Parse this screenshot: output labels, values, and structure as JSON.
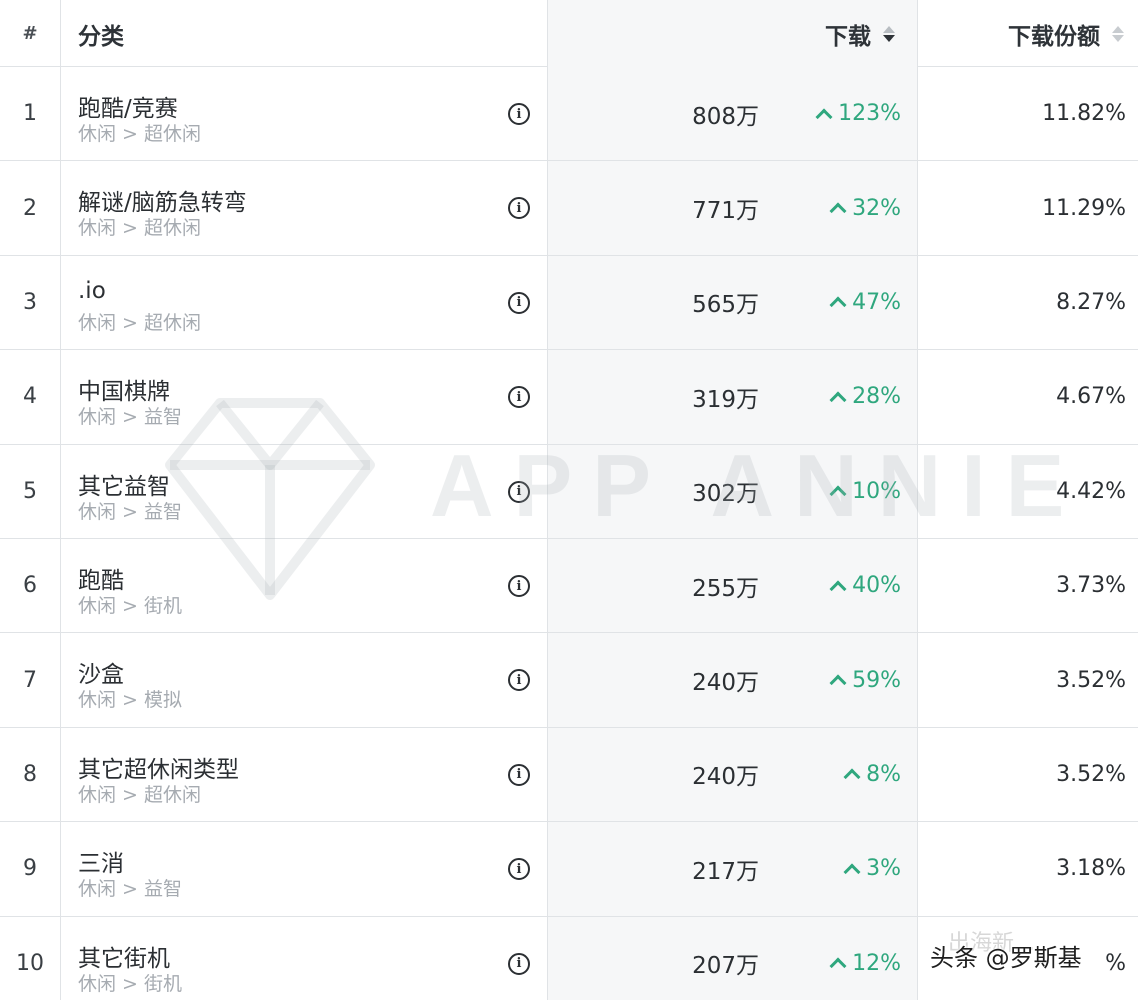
{
  "header": {
    "rank": "#",
    "category": "分类",
    "downloads": "下载",
    "share": "下载份额"
  },
  "rows": [
    {
      "rank": "1",
      "name": "跑酷/竞赛",
      "path": "休闲 > 超休闲",
      "downloads": "808万",
      "change": "123%",
      "share": "11.82%"
    },
    {
      "rank": "2",
      "name": "解谜/脑筋急转弯",
      "path": "休闲 > 超休闲",
      "downloads": "771万",
      "change": "32%",
      "share": "11.29%"
    },
    {
      "rank": "3",
      "name": ".io",
      "path": "休闲 > 超休闲",
      "downloads": "565万",
      "change": "47%",
      "share": "8.27%"
    },
    {
      "rank": "4",
      "name": "中国棋牌",
      "path": "休闲 > 益智",
      "downloads": "319万",
      "change": "28%",
      "share": "4.67%"
    },
    {
      "rank": "5",
      "name": "其它益智",
      "path": "休闲 > 益智",
      "downloads": "302万",
      "change": "10%",
      "share": "4.42%"
    },
    {
      "rank": "6",
      "name": "跑酷",
      "path": "休闲 > 街机",
      "downloads": "255万",
      "change": "40%",
      "share": "3.73%"
    },
    {
      "rank": "7",
      "name": "沙盒",
      "path": "休闲 > 模拟",
      "downloads": "240万",
      "change": "59%",
      "share": "3.52%"
    },
    {
      "rank": "8",
      "name": "其它超休闲类型",
      "path": "休闲 > 超休闲",
      "downloads": "240万",
      "change": "8%",
      "share": "3.52%"
    },
    {
      "rank": "9",
      "name": "三消",
      "path": "休闲 > 益智",
      "downloads": "217万",
      "change": "3%",
      "share": "3.18%"
    },
    {
      "rank": "10",
      "name": "其它街机",
      "path": "休闲 > 街机",
      "downloads": "207万",
      "change": "12%",
      "share": "%"
    }
  ],
  "watermark": {
    "text": "APP ANNIE"
  },
  "credit": {
    "text": "头条 @罗斯基",
    "ghost": "出海新..."
  },
  "colors": {
    "positive": "#2fa77e",
    "download_column_bg": "#f6f7f8",
    "border": "#e0e3e6",
    "muted_text": "#a6abb1"
  },
  "icons": {
    "info": "info-circle-icon",
    "sort": "sort-icon",
    "trend": "chevron-up-icon"
  }
}
